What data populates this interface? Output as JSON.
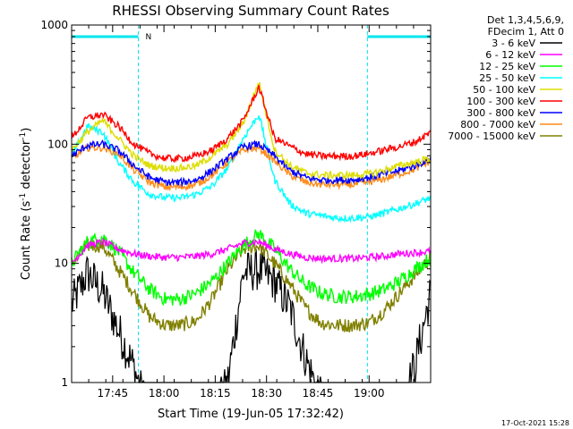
{
  "chart_data": {
    "type": "line",
    "title": "RHESSI Observing Summary Count Rates",
    "xlabel": "Start Time (19-Jun-05 17:32:42)",
    "ylabel_main": "Count Rate (s",
    "ylabel_sup1": "-1",
    "ylabel_mid": " detector",
    "ylabel_sup2": "-1",
    "ylabel_end": ")",
    "yscale": "log",
    "ylim": [
      1,
      1000
    ],
    "xlim_min": [
      0,
      105
    ],
    "x_tick_minutes": [
      12,
      27,
      42,
      57,
      72,
      87
    ],
    "x_tick_labels": [
      "17:45",
      "18:00",
      "18:15",
      "18:30",
      "18:45",
      "19:00"
    ],
    "y_tick_values": [
      1,
      10,
      100,
      1000
    ],
    "y_tick_labels": [
      "1",
      "10",
      "100",
      "1000"
    ],
    "legend_header": [
      "Det 1,3,4,5,6,9,",
      "FDecim 1, Att 0"
    ],
    "legend_placement": "top-right",
    "footer_date": "17-Oct-2021 15:28",
    "night_marker": "N",
    "night_intervals_min": [
      [
        0,
        19.5
      ],
      [
        86.5,
        105
      ]
    ],
    "series": [
      {
        "name": "3 - 6 keV",
        "color": "#000000",
        "level": [
          0.65,
          0.92,
          0.76,
          0.44,
          0.12,
          -0.3,
          -0.7,
          -0.85,
          -0.6,
          -0.3,
          0.0,
          0.92,
          0.95,
          0.85,
          0.62,
          0.2,
          -0.15,
          -0.55,
          -0.75,
          -0.85,
          -0.7,
          -0.25,
          0.15,
          0.75
        ]
      },
      {
        "name": "6 - 12 keV",
        "color": "#ff00ff",
        "level": [
          1.0,
          1.15,
          1.18,
          1.12,
          1.08,
          1.06,
          1.05,
          1.05,
          1.06,
          1.08,
          1.12,
          1.17,
          1.18,
          1.12,
          1.08,
          1.05,
          1.04,
          1.04,
          1.04,
          1.05,
          1.06,
          1.08,
          1.09,
          1.1
        ]
      },
      {
        "name": "12 - 25 keV",
        "color": "#00ff00",
        "level": [
          1.0,
          1.18,
          1.22,
          1.1,
          0.92,
          0.78,
          0.7,
          0.7,
          0.75,
          0.85,
          1.0,
          1.15,
          1.25,
          1.12,
          0.95,
          0.82,
          0.75,
          0.72,
          0.72,
          0.74,
          0.78,
          0.85,
          0.95,
          1.05
        ]
      },
      {
        "name": "25 - 50 keV",
        "color": "#00ffff",
        "level": [
          1.9,
          2.15,
          2.1,
          1.85,
          1.68,
          1.58,
          1.55,
          1.55,
          1.58,
          1.65,
          1.8,
          2.05,
          2.25,
          1.7,
          1.5,
          1.42,
          1.4,
          1.38,
          1.38,
          1.39,
          1.42,
          1.46,
          1.5,
          1.55
        ]
      },
      {
        "name": "50 - 100 keV",
        "color": "#dddd00",
        "level": [
          1.95,
          2.1,
          2.2,
          2.05,
          1.9,
          1.82,
          1.8,
          1.8,
          1.82,
          1.9,
          2.0,
          2.18,
          2.52,
          1.95,
          1.82,
          1.76,
          1.74,
          1.74,
          1.74,
          1.75,
          1.78,
          1.82,
          1.85,
          1.88
        ]
      },
      {
        "name": "100 - 300 keV",
        "color": "#ff0000",
        "level": [
          2.05,
          2.22,
          2.25,
          2.15,
          2.0,
          1.92,
          1.88,
          1.88,
          1.9,
          1.95,
          2.05,
          2.2,
          2.48,
          2.05,
          1.98,
          1.92,
          1.9,
          1.9,
          1.9,
          1.92,
          1.95,
          1.98,
          2.02,
          2.1
        ]
      },
      {
        "name": "300 - 800 keV",
        "color": "#0000ff",
        "level": [
          1.9,
          1.99,
          2.0,
          1.95,
          1.82,
          1.72,
          1.68,
          1.68,
          1.7,
          1.78,
          1.88,
          1.98,
          2.0,
          1.9,
          1.78,
          1.72,
          1.7,
          1.7,
          1.7,
          1.72,
          1.75,
          1.78,
          1.82,
          1.88
        ]
      },
      {
        "name": "800 - 7000 keV",
        "color": "#ff8c1a",
        "level": [
          1.88,
          1.97,
          1.97,
          1.92,
          1.78,
          1.68,
          1.64,
          1.64,
          1.66,
          1.74,
          1.85,
          1.95,
          1.97,
          1.86,
          1.74,
          1.68,
          1.66,
          1.66,
          1.66,
          1.68,
          1.71,
          1.75,
          1.79,
          1.86
        ]
      },
      {
        "name": "7000 - 15000 keV",
        "color": "#808000",
        "level": [
          1.0,
          1.15,
          1.15,
          0.95,
          0.75,
          0.55,
          0.48,
          0.48,
          0.52,
          0.7,
          0.95,
          1.12,
          1.15,
          1.0,
          0.82,
          0.62,
          0.5,
          0.48,
          0.48,
          0.5,
          0.6,
          0.75,
          0.9,
          1.05
        ]
      }
    ]
  }
}
